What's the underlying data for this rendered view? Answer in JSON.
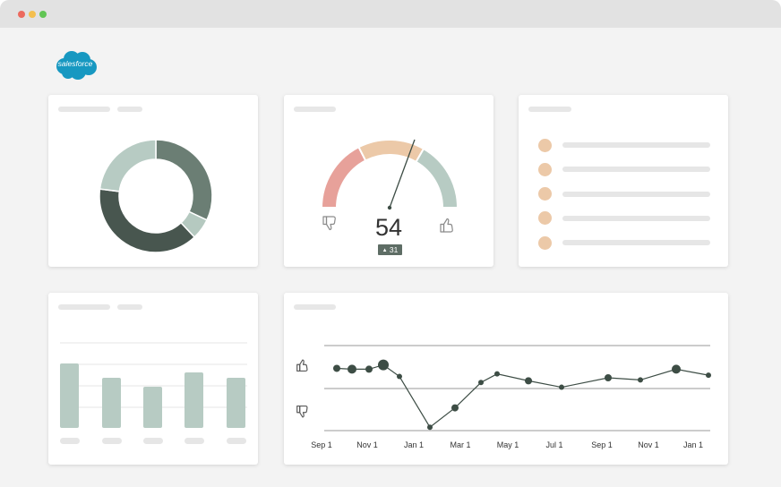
{
  "window": {
    "dots": [
      "#ec6a5e",
      "#f4bf4f",
      "#61c554"
    ]
  },
  "brand": {
    "logo_text": "salesforce",
    "color": "#1798c1"
  },
  "colors": {
    "donut": [
      "#6b7e74",
      "#b5c9c0",
      "#48564f",
      "#b7cbc3"
    ],
    "gauge": [
      "#e7a19a",
      "#ecc9a8",
      "#b7cbc3"
    ],
    "list_dot": "#ecc9a8",
    "bar": "#b7cbc3",
    "line": "#3d4d45"
  },
  "gauge": {
    "value": "54",
    "delta": "31",
    "delta_icon": "triangle-up-icon"
  },
  "icons": {
    "negative": "thumbs-down-icon",
    "positive": "thumbs-up-icon"
  },
  "chart_data": [
    {
      "type": "pie",
      "values": [
        32,
        6,
        39,
        23
      ]
    },
    {
      "type": "bar",
      "values": [
        72,
        56,
        46,
        62,
        56
      ]
    },
    {
      "type": "line",
      "x_tick_labels": [
        "Sep 1",
        "Nov 1",
        "Jan 1",
        "Mar 1",
        "May 1",
        "Jul 1",
        "Sep 1",
        "Nov 1",
        "Jan 1"
      ],
      "values": [
        0.47,
        0.45,
        0.45,
        0.55,
        0.28,
        -0.9,
        -0.45,
        0.14,
        0.34,
        0.18,
        0.03,
        0.25,
        0.2,
        0.45,
        0.31
      ],
      "point_sizes": [
        4,
        5,
        4,
        6,
        3,
        3,
        4,
        3,
        3,
        4,
        3,
        4,
        3,
        5,
        3
      ],
      "grid": true
    }
  ]
}
